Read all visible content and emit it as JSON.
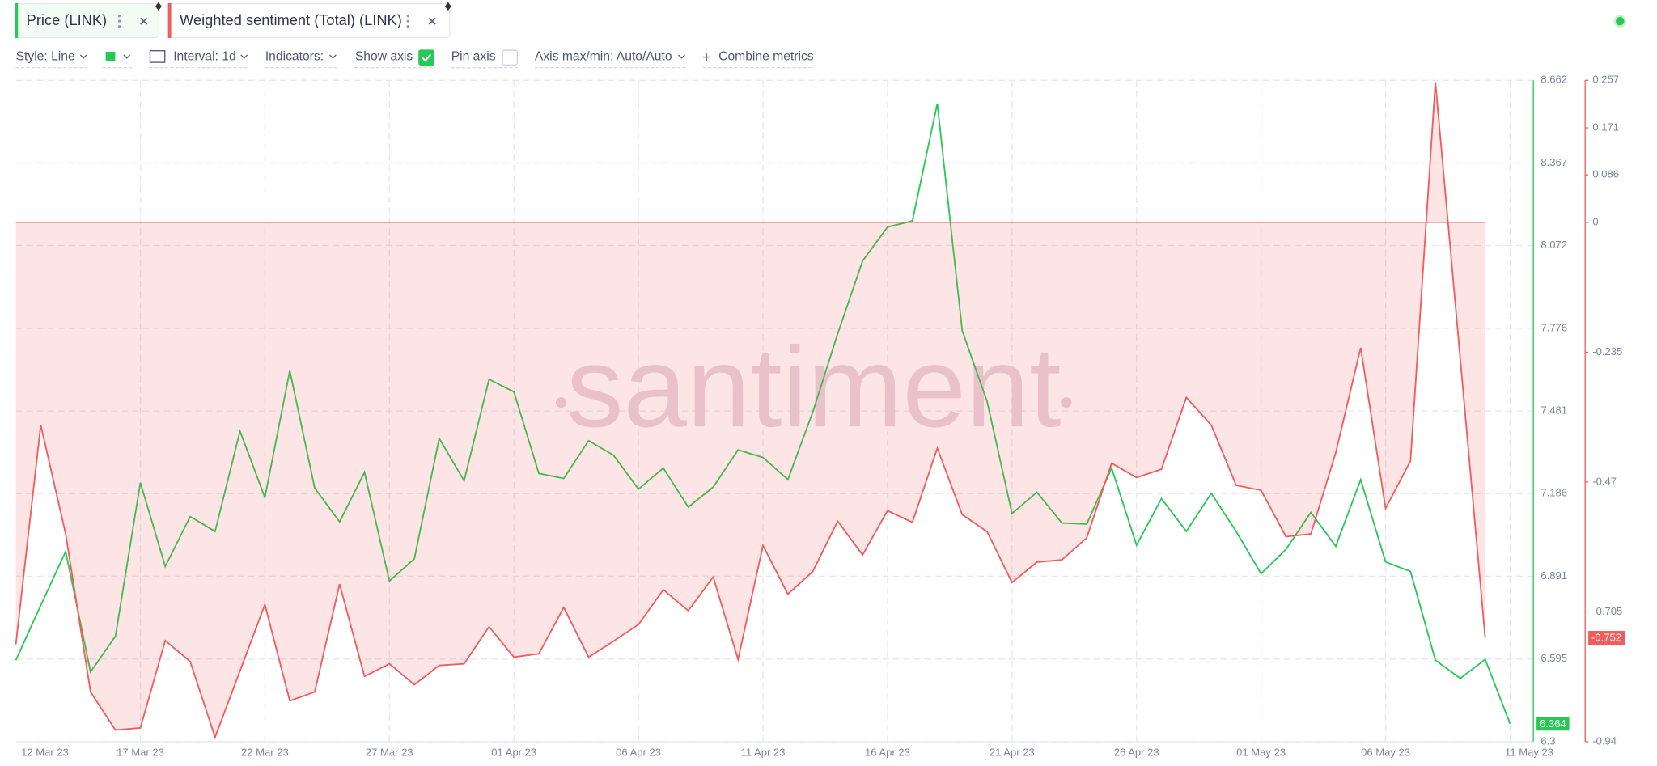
{
  "chips": [
    "Price (LINK)",
    "Weighted sentiment (Total) (LINK)"
  ],
  "toolbar": {
    "style": "Style: Line",
    "interval": "Interval: 1d",
    "indicators": "Indicators:",
    "show_axis": "Show axis",
    "pin_axis": "Pin axis",
    "axis_minmax": "Axis max/min: Auto/Auto",
    "combine": "Combine metrics"
  },
  "watermark": "santiment",
  "chart_data": {
    "type": "line",
    "x": [
      "12 Mar 23",
      null,
      null,
      null,
      null,
      "17 Mar 23",
      null,
      null,
      null,
      null,
      "22 Mar 23",
      null,
      null,
      null,
      null,
      "27 Mar 23",
      null,
      null,
      null,
      null,
      "01 Apr 23",
      null,
      null,
      null,
      null,
      "06 Apr 23",
      null,
      null,
      null,
      null,
      "11 Apr 23",
      null,
      null,
      null,
      null,
      "16 Apr 23",
      null,
      null,
      null,
      null,
      "21 Apr 23",
      null,
      null,
      null,
      null,
      "26 Apr 23",
      null,
      null,
      null,
      null,
      "01 May 23",
      null,
      null,
      null,
      null,
      "06 May 23",
      null,
      null,
      null,
      null,
      "11 May 23"
    ],
    "series": [
      {
        "name": "Price (LINK)",
        "color": "#26c953",
        "axis": "y",
        "values": [
          6.591,
          6.787,
          6.979,
          6.549,
          6.677,
          7.225,
          6.926,
          7.104,
          7.051,
          7.409,
          7.172,
          7.625,
          7.206,
          7.085,
          7.262,
          6.874,
          6.953,
          7.383,
          7.232,
          7.594,
          7.549,
          7.258,
          7.24,
          7.375,
          7.323,
          7.202,
          7.277,
          7.138,
          7.209,
          7.342,
          7.315,
          7.236,
          7.477,
          7.757,
          8.017,
          8.138,
          8.16,
          8.579,
          7.768,
          7.515,
          7.115,
          7.191,
          7.081,
          7.077,
          7.277,
          7.002,
          7.168,
          7.051,
          7.187,
          7.051,
          6.9,
          6.987,
          7.119,
          6.998,
          7.236,
          6.942,
          6.908,
          6.591,
          6.526,
          6.594,
          6.364
        ]
      },
      {
        "name": "Weighted sentiment (Total) (LINK)",
        "color": "#f15c5c",
        "axis": "y2",
        "values": [
          -0.764,
          -0.367,
          -0.564,
          -0.85,
          -0.919,
          -0.915,
          -0.757,
          -0.795,
          -0.932,
          -0.812,
          -0.692,
          -0.866,
          -0.85,
          -0.655,
          -0.822,
          -0.799,
          -0.837,
          -0.802,
          -0.799,
          -0.732,
          -0.787,
          -0.781,
          -0.697,
          -0.787,
          -0.758,
          -0.728,
          -0.665,
          -0.703,
          -0.642,
          -0.791,
          -0.585,
          -0.673,
          -0.632,
          -0.541,
          -0.602,
          -0.522,
          -0.543,
          -0.409,
          -0.529,
          -0.56,
          -0.652,
          -0.615,
          -0.611,
          -0.571,
          -0.436,
          -0.462,
          -0.447,
          -0.317,
          -0.367,
          -0.476,
          -0.485,
          -0.569,
          -0.564,
          -0.417,
          -0.227,
          -0.518,
          -0.432,
          0.254,
          -0.248,
          -0.752,
          null
        ]
      }
    ],
    "ylim": [
      6.3,
      8.662
    ],
    "yticks": [
      6.3,
      6.595,
      6.891,
      7.186,
      7.481,
      7.776,
      8.072,
      8.367,
      8.662
    ],
    "y2lim": [
      -0.94,
      0.257
    ],
    "y2ticks": [
      -0.94,
      -0.705,
      -0.47,
      -0.235,
      0,
      0.086,
      0.171,
      0.257
    ],
    "grid": true
  }
}
